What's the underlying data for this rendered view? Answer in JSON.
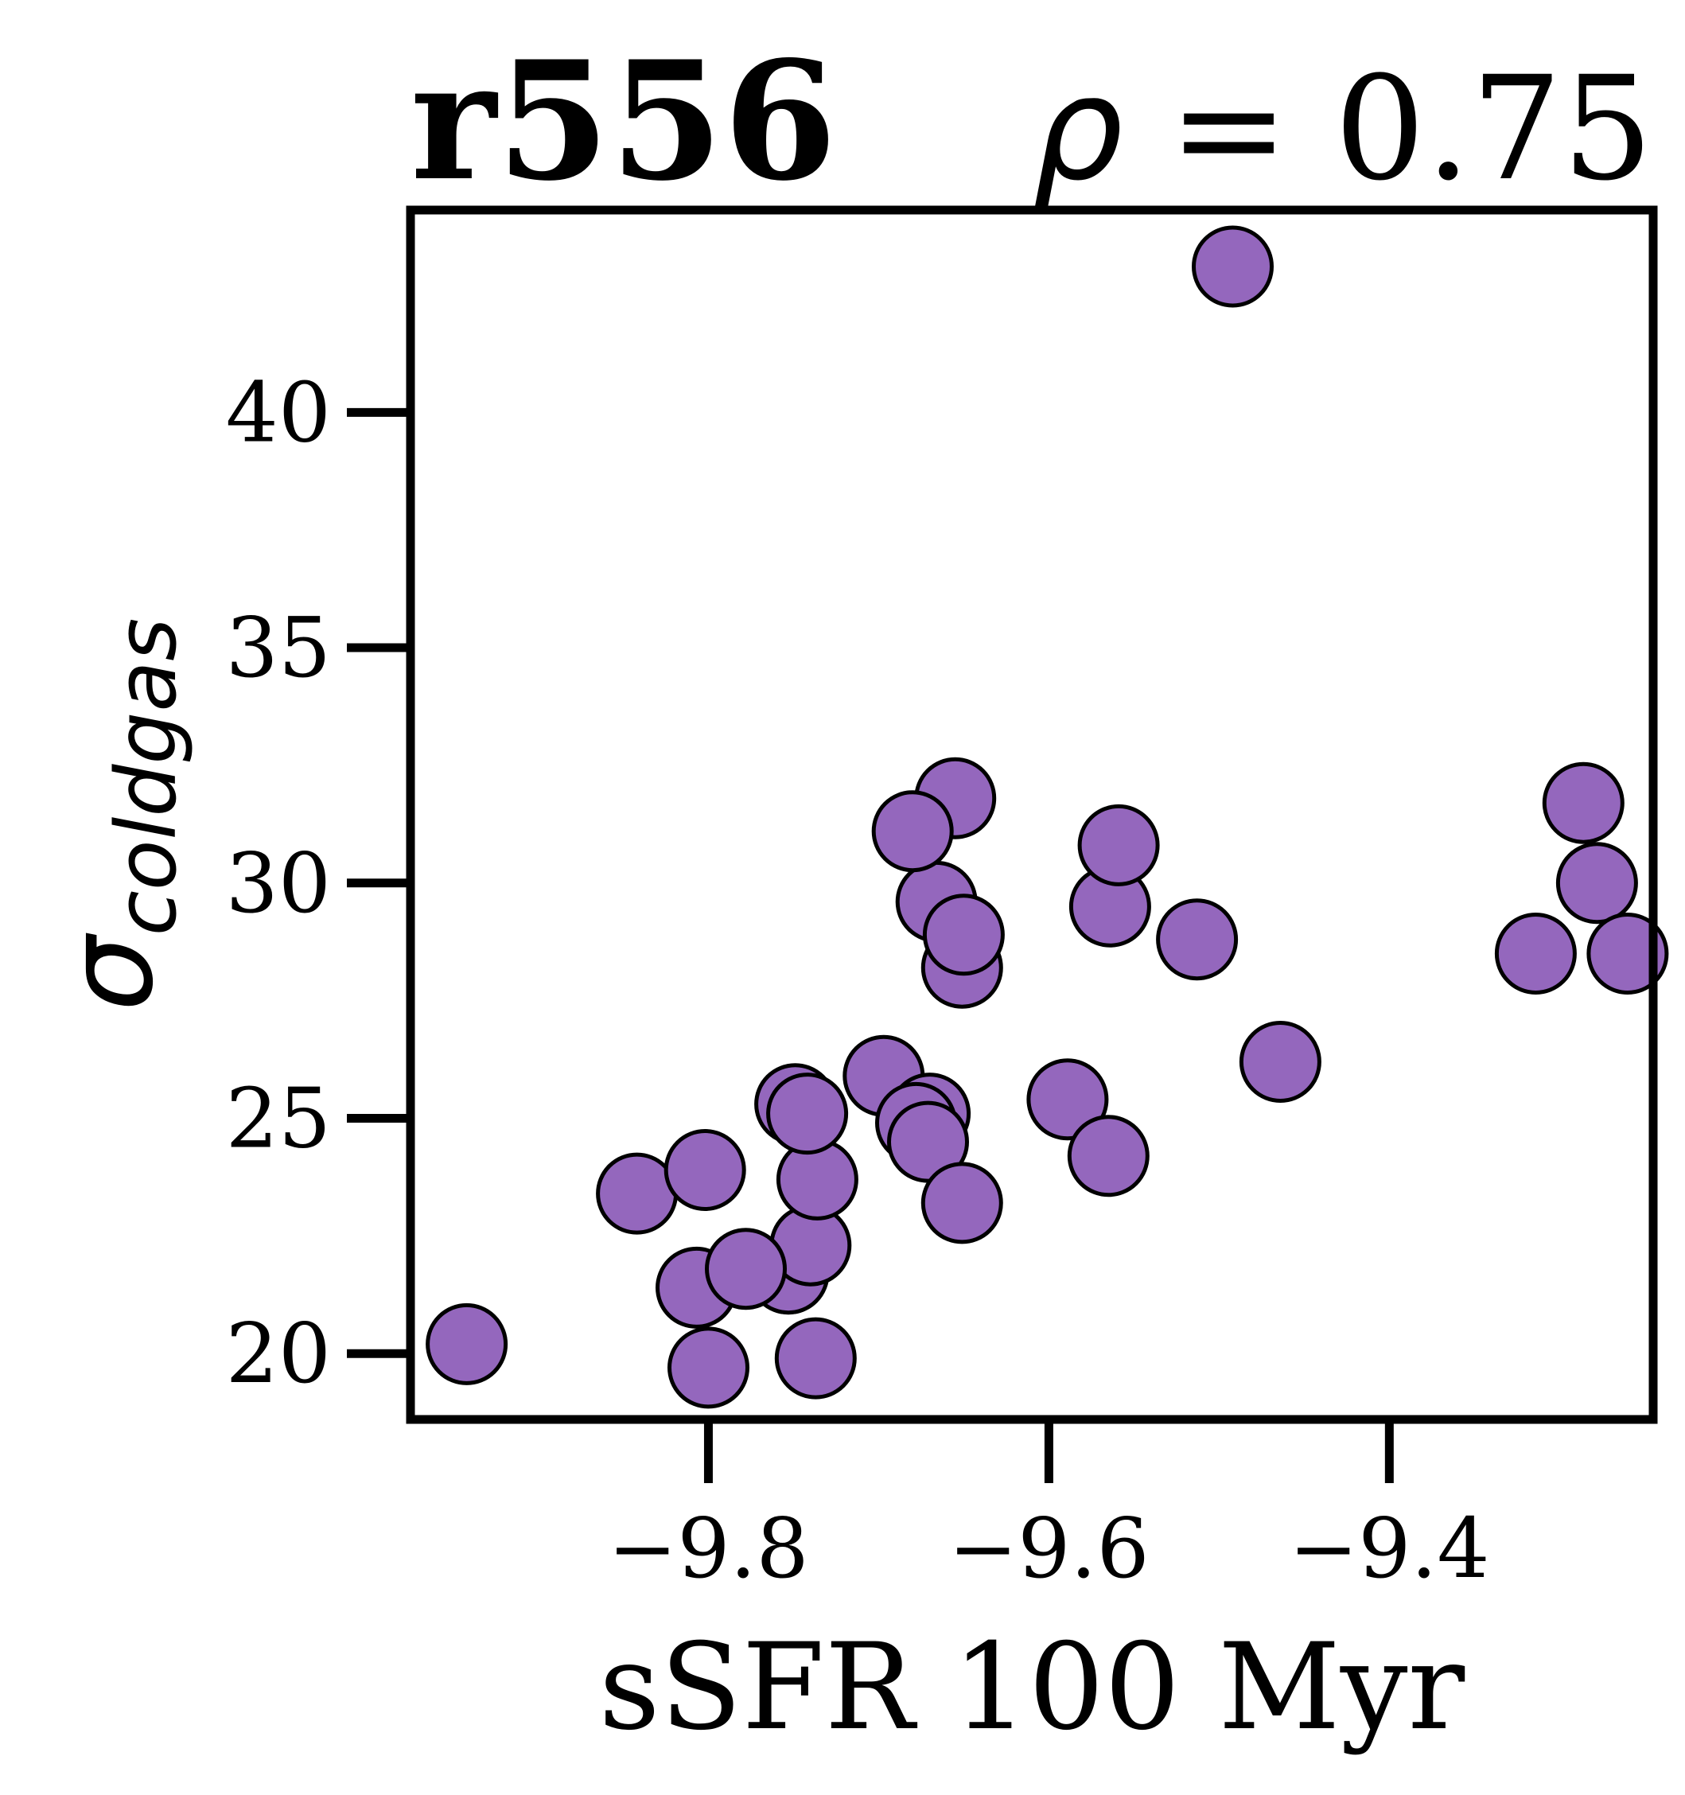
{
  "chart_data": {
    "type": "scatter",
    "title_left": "r556",
    "title_right": "ρ = 0.75",
    "xlabel": "sSFR 100 Myr",
    "ylabel": "σ",
    "ylabel_sub": "coldgas",
    "xlim": [
      -9.975,
      -9.245
    ],
    "ylim": [
      18.6,
      44.3
    ],
    "xticks": [
      -9.8,
      -9.6,
      -9.4
    ],
    "xtick_labels": [
      "−9.8",
      "−9.6",
      "−9.4"
    ],
    "yticks": [
      20,
      25,
      30,
      35,
      40
    ],
    "ytick_labels": [
      "20",
      "25",
      "30",
      "35",
      "40"
    ],
    "grid": false,
    "marker_color": "#9467bd",
    "points": [
      {
        "x": -9.942,
        "y": 20.2
      },
      {
        "x": -9.8,
        "y": 19.7
      },
      {
        "x": -9.737,
        "y": 19.9
      },
      {
        "x": -9.807,
        "y": 21.4
      },
      {
        "x": -9.753,
        "y": 21.7
      },
      {
        "x": -9.74,
        "y": 22.3
      },
      {
        "x": -9.778,
        "y": 21.8
      },
      {
        "x": -9.842,
        "y": 23.4
      },
      {
        "x": -9.802,
        "y": 23.9
      },
      {
        "x": -9.736,
        "y": 23.7
      },
      {
        "x": -9.749,
        "y": 25.3
      },
      {
        "x": -9.742,
        "y": 25.1
      },
      {
        "x": -9.697,
        "y": 25.9
      },
      {
        "x": -9.67,
        "y": 25.1
      },
      {
        "x": -9.678,
        "y": 24.9
      },
      {
        "x": -9.671,
        "y": 24.5
      },
      {
        "x": -9.651,
        "y": 23.2
      },
      {
        "x": -9.589,
        "y": 25.4
      },
      {
        "x": -9.565,
        "y": 24.2
      },
      {
        "x": -9.651,
        "y": 28.2
      },
      {
        "x": -9.666,
        "y": 29.6
      },
      {
        "x": -9.65,
        "y": 28.9
      },
      {
        "x": -9.655,
        "y": 31.8
      },
      {
        "x": -9.68,
        "y": 31.1
      },
      {
        "x": -9.564,
        "y": 29.5
      },
      {
        "x": -9.559,
        "y": 30.8
      },
      {
        "x": -9.513,
        "y": 28.8
      },
      {
        "x": -9.492,
        "y": 43.1
      },
      {
        "x": -9.464,
        "y": 26.2
      },
      {
        "x": -9.314,
        "y": 28.5
      },
      {
        "x": -9.286,
        "y": 31.7
      },
      {
        "x": -9.278,
        "y": 30.0
      },
      {
        "x": -9.26,
        "y": 28.5
      }
    ]
  }
}
